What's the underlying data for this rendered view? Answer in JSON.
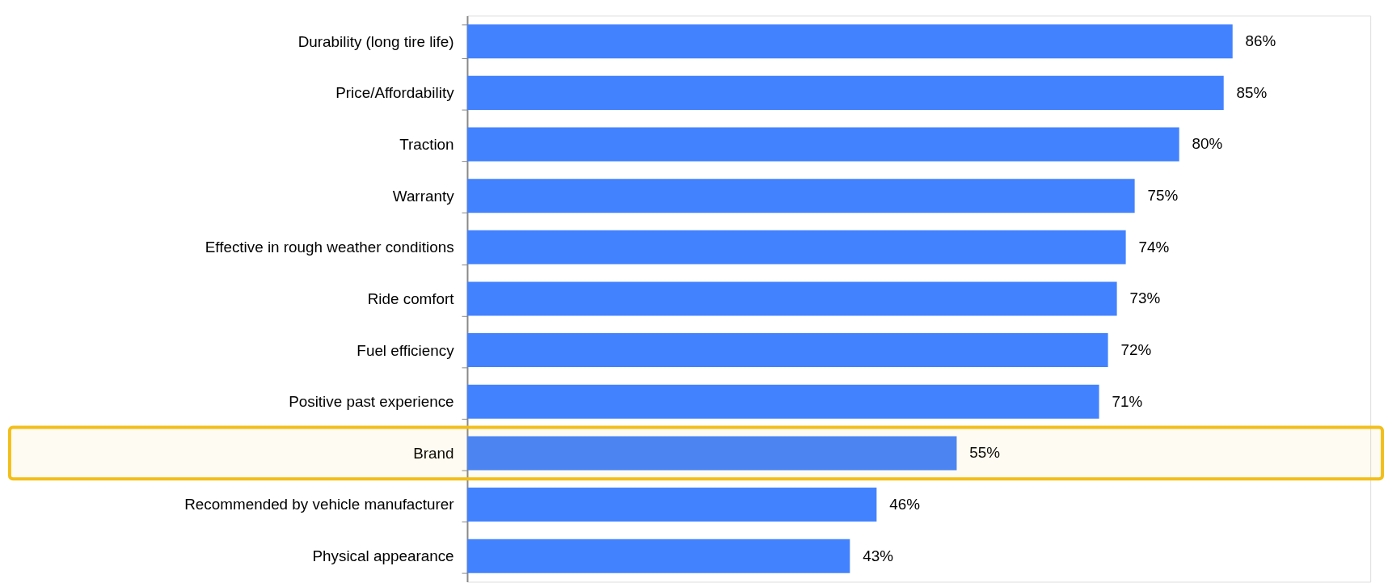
{
  "chart_data": {
    "type": "bar",
    "orientation": "horizontal",
    "categories": [
      "Durability (long tire life)",
      "Price/Affordability",
      "Traction",
      "Warranty",
      "Effective in rough weather conditions",
      "Ride comfort",
      "Fuel efficiency",
      "Positive past experience",
      "Brand",
      "Recommended by vehicle manufacturer",
      "Physical appearance"
    ],
    "values": [
      86,
      85,
      80,
      75,
      74,
      73,
      72,
      71,
      55,
      46,
      43
    ],
    "value_labels": [
      "86%",
      "85%",
      "80%",
      "75%",
      "74%",
      "73%",
      "72%",
      "71%",
      "55%",
      "46%",
      "43%"
    ],
    "color": "#4282ff",
    "bands": [
      {
        "axis": "y",
        "from": "Brand",
        "to": "Brand",
        "color": "#f2be1a"
      }
    ]
  }
}
